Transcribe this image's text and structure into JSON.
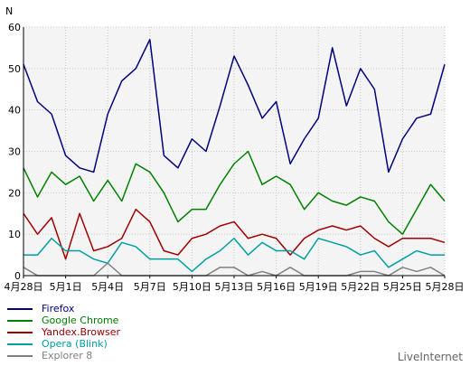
{
  "chart_data": {
    "type": "line",
    "ylabel": "N",
    "ylim": [
      0,
      60
    ],
    "yticks": [
      0,
      10,
      20,
      30,
      40,
      50,
      60
    ],
    "x": [
      "4月28日",
      "4月29日",
      "4月30日",
      "5月1日",
      "5月2日",
      "5月3日",
      "5月4日",
      "5月5日",
      "5月6日",
      "5月7日",
      "5月8日",
      "5月9日",
      "5月10日",
      "5月11日",
      "5月12日",
      "5月13日",
      "5月14日",
      "5月15日",
      "5月16日",
      "5月17日",
      "5月18日",
      "5月19日",
      "5月20日",
      "5月21日",
      "5月22日",
      "5月23日",
      "5月24日",
      "5月25日",
      "5月26日",
      "5月27日",
      "5月28日"
    ],
    "xtick_labels": [
      "4月28日",
      "5月1日",
      "5月4日",
      "5月7日",
      "5月10日",
      "5月13日",
      "5月16日",
      "5月19日",
      "5月22日",
      "5月25日",
      "5月28日"
    ],
    "grid": true,
    "legend_position": "bottom-left",
    "series": [
      {
        "name": "Firefox",
        "color": "#000080",
        "values": [
          51,
          42,
          39,
          29,
          26,
          25,
          39,
          47,
          50,
          57,
          29,
          26,
          33,
          30,
          41,
          53,
          46,
          38,
          42,
          27,
          33,
          38,
          55,
          41,
          50,
          45,
          25,
          33,
          38,
          39,
          51
        ]
      },
      {
        "name": "Google Chrome",
        "color": "#008000",
        "values": [
          26,
          19,
          25,
          22,
          24,
          18,
          23,
          18,
          27,
          25,
          20,
          13,
          16,
          16,
          22,
          27,
          30,
          22,
          24,
          22,
          16,
          20,
          18,
          17,
          19,
          18,
          13,
          10,
          16,
          22,
          18
        ]
      },
      {
        "name": "Yandex.Browser",
        "color": "#a00000",
        "values": [
          15,
          10,
          14,
          4,
          15,
          6,
          7,
          9,
          16,
          13,
          6,
          5,
          9,
          10,
          12,
          13,
          9,
          10,
          9,
          5,
          9,
          11,
          12,
          11,
          12,
          9,
          7,
          9,
          9,
          9,
          8
        ]
      },
      {
        "name": "Opera (Blink)",
        "color": "#00a0a0",
        "values": [
          5,
          5,
          9,
          6,
          6,
          4,
          3,
          8,
          7,
          4,
          4,
          4,
          1,
          4,
          6,
          9,
          5,
          8,
          6,
          6,
          4,
          9,
          8,
          7,
          5,
          6,
          2,
          4,
          6,
          5,
          5
        ]
      },
      {
        "name": "Explorer 8",
        "color": "#808080",
        "values": [
          2,
          0,
          0,
          0,
          0,
          0,
          3,
          0,
          0,
          0,
          0,
          0,
          0,
          0,
          2,
          2,
          0,
          1,
          0,
          2,
          0,
          0,
          0,
          0,
          1,
          1,
          0,
          2,
          1,
          2,
          0
        ]
      }
    ]
  },
  "footer": {
    "brand": "LiveInternet"
  }
}
